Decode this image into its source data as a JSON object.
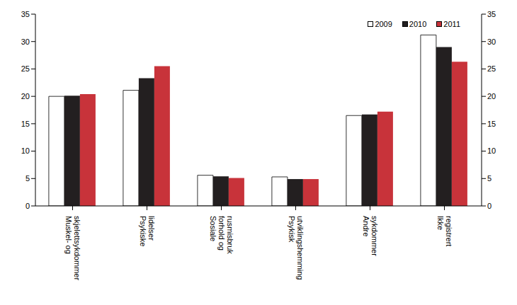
{
  "chart_data": {
    "type": "bar",
    "categories": [
      "Muskel- og skjelettsykdommer",
      "Psykiske lidelser",
      "Sosiale forhold og rusmisbruk",
      "Psykisk utviklingshemming",
      "Andre sykdommer",
      "Ikke registrert"
    ],
    "series": [
      {
        "name": "2009",
        "color": "#ffffff",
        "values": [
          20.0,
          21.1,
          5.6,
          5.3,
          16.5,
          31.2
        ]
      },
      {
        "name": "2010",
        "color": "#231f20",
        "values": [
          20.1,
          23.3,
          5.4,
          4.9,
          16.7,
          29.0
        ]
      },
      {
        "name": "2011",
        "color": "#c8333a",
        "values": [
          20.4,
          25.5,
          5.1,
          4.9,
          17.2,
          26.3
        ]
      }
    ],
    "ylim": [
      0,
      35
    ],
    "yticks": [
      0,
      5,
      10,
      15,
      20,
      25,
      30,
      35
    ],
    "grid": false,
    "legend": "upper right"
  }
}
